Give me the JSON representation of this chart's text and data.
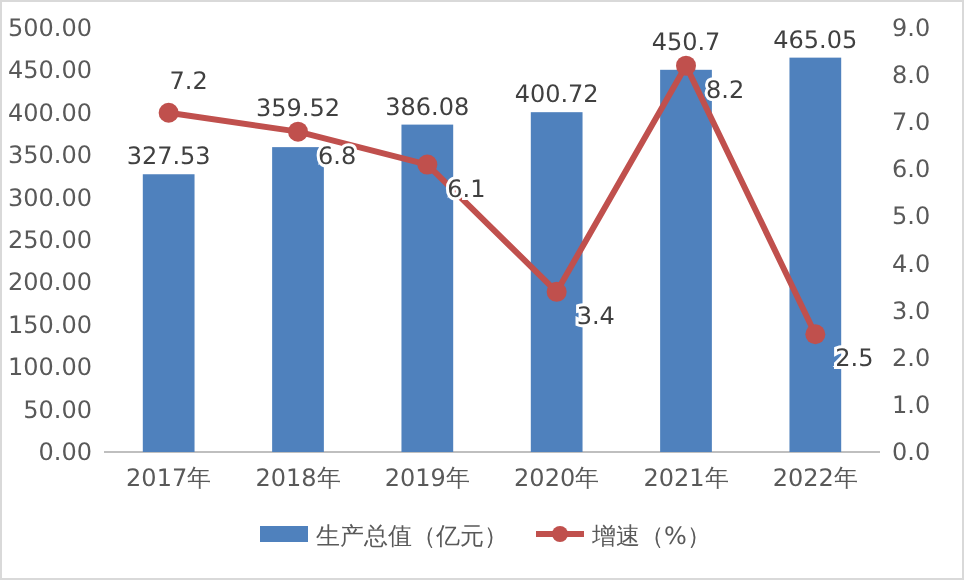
{
  "chart_data": {
    "type": "bar",
    "categories": [
      "2017年",
      "2018年",
      "2019年",
      "2020年",
      "2021年",
      "2022年"
    ],
    "series": [
      {
        "name": "生产总值（亿元）",
        "color": "#4f81bd",
        "values": [
          327.53,
          359.52,
          386.08,
          400.72,
          450.7,
          465.05
        ]
      },
      {
        "name": "增速（%）",
        "type": "line",
        "axis": "y2",
        "color": "#c0504d",
        "values": [
          7.2,
          6.8,
          6.1,
          3.4,
          8.2,
          2.5
        ]
      }
    ],
    "ylim": [
      0,
      500
    ],
    "yticks": [
      {
        "value": 0,
        "label": "0.00"
      },
      {
        "value": 50,
        "label": "50.00"
      },
      {
        "value": 100,
        "label": "100.00"
      },
      {
        "value": 150,
        "label": "150.00"
      },
      {
        "value": 200,
        "label": "200.00"
      },
      {
        "value": 250,
        "label": "250.00"
      },
      {
        "value": 300,
        "label": "300.00"
      },
      {
        "value": 350,
        "label": "350.00"
      },
      {
        "value": 400,
        "label": "400.00"
      },
      {
        "value": 450,
        "label": "450.00"
      },
      {
        "value": 500,
        "label": "500.00"
      }
    ],
    "y2lim": [
      0,
      9
    ],
    "y2ticks": [
      {
        "value": 0,
        "label": "0.0"
      },
      {
        "value": 1,
        "label": "1.0"
      },
      {
        "value": 2,
        "label": "2.0"
      },
      {
        "value": 3,
        "label": "3.0"
      },
      {
        "value": 4,
        "label": "4.0"
      },
      {
        "value": 5,
        "label": "5.0"
      },
      {
        "value": 6,
        "label": "6.0"
      },
      {
        "value": 7,
        "label": "7.0"
      },
      {
        "value": 8,
        "label": "8.0"
      },
      {
        "value": 9,
        "label": "9.0"
      }
    ],
    "data_labels": true,
    "legend": "bottom",
    "marker": "circle",
    "line_style": "solid"
  }
}
